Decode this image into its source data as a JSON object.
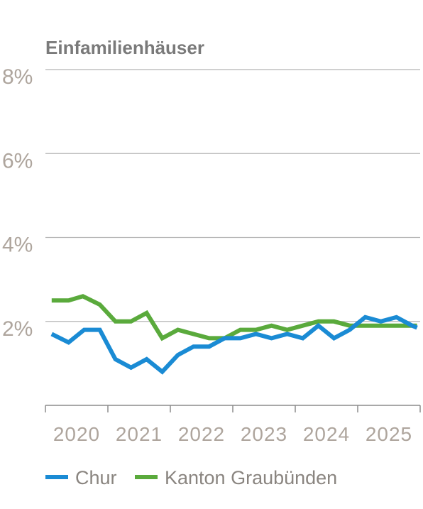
{
  "chart_data": {
    "type": "line",
    "title": "Einfamilienhäuser",
    "xlabel": "",
    "ylabel": "",
    "y_tick_labels": [
      "2%",
      "4%",
      "6%",
      "8%"
    ],
    "y_ticks": [
      2,
      4,
      6,
      8
    ],
    "ylim": [
      0,
      8
    ],
    "x_tick_labels": [
      "2020",
      "2021",
      "2022",
      "2023",
      "2024",
      "2025"
    ],
    "x_ticks": [
      2020,
      2021,
      2022,
      2023,
      2024,
      2025
    ],
    "xlim": [
      2019.5,
      2025.5
    ],
    "grid": true,
    "legend_position": "bottom-left",
    "series": [
      {
        "name": "Chur",
        "color": "#1a8bd4",
        "x": [
          2019.6,
          2019.87,
          2020.12,
          2020.37,
          2020.62,
          2020.87,
          2021.12,
          2021.37,
          2021.62,
          2021.87,
          2022.12,
          2022.37,
          2022.62,
          2022.87,
          2023.12,
          2023.37,
          2023.62,
          2023.87,
          2024.12,
          2024.37,
          2024.62,
          2024.87,
          2025.12,
          2025.37,
          2025.45
        ],
        "values": [
          1.7,
          1.5,
          1.8,
          1.8,
          1.1,
          0.9,
          1.1,
          0.8,
          1.2,
          1.4,
          1.4,
          1.6,
          1.6,
          1.7,
          1.6,
          1.7,
          1.6,
          1.9,
          1.6,
          1.8,
          2.1,
          2.0,
          2.1,
          1.9,
          1.85
        ]
      },
      {
        "name": "Kanton Graubünden",
        "color": "#5aaa3c",
        "x": [
          2019.6,
          2019.87,
          2020.1,
          2020.37,
          2020.62,
          2020.87,
          2021.12,
          2021.37,
          2021.62,
          2021.87,
          2022.12,
          2022.37,
          2022.62,
          2022.87,
          2023.12,
          2023.37,
          2023.62,
          2023.87,
          2024.12,
          2024.37,
          2024.62,
          2024.87,
          2025.12,
          2025.37,
          2025.45
        ],
        "values": [
          2.5,
          2.5,
          2.6,
          2.4,
          2.0,
          2.0,
          2.2,
          1.6,
          1.8,
          1.7,
          1.6,
          1.6,
          1.8,
          1.8,
          1.9,
          1.8,
          1.9,
          2.0,
          2.0,
          1.9,
          1.9,
          1.9,
          1.9,
          1.9,
          1.9
        ]
      }
    ]
  }
}
